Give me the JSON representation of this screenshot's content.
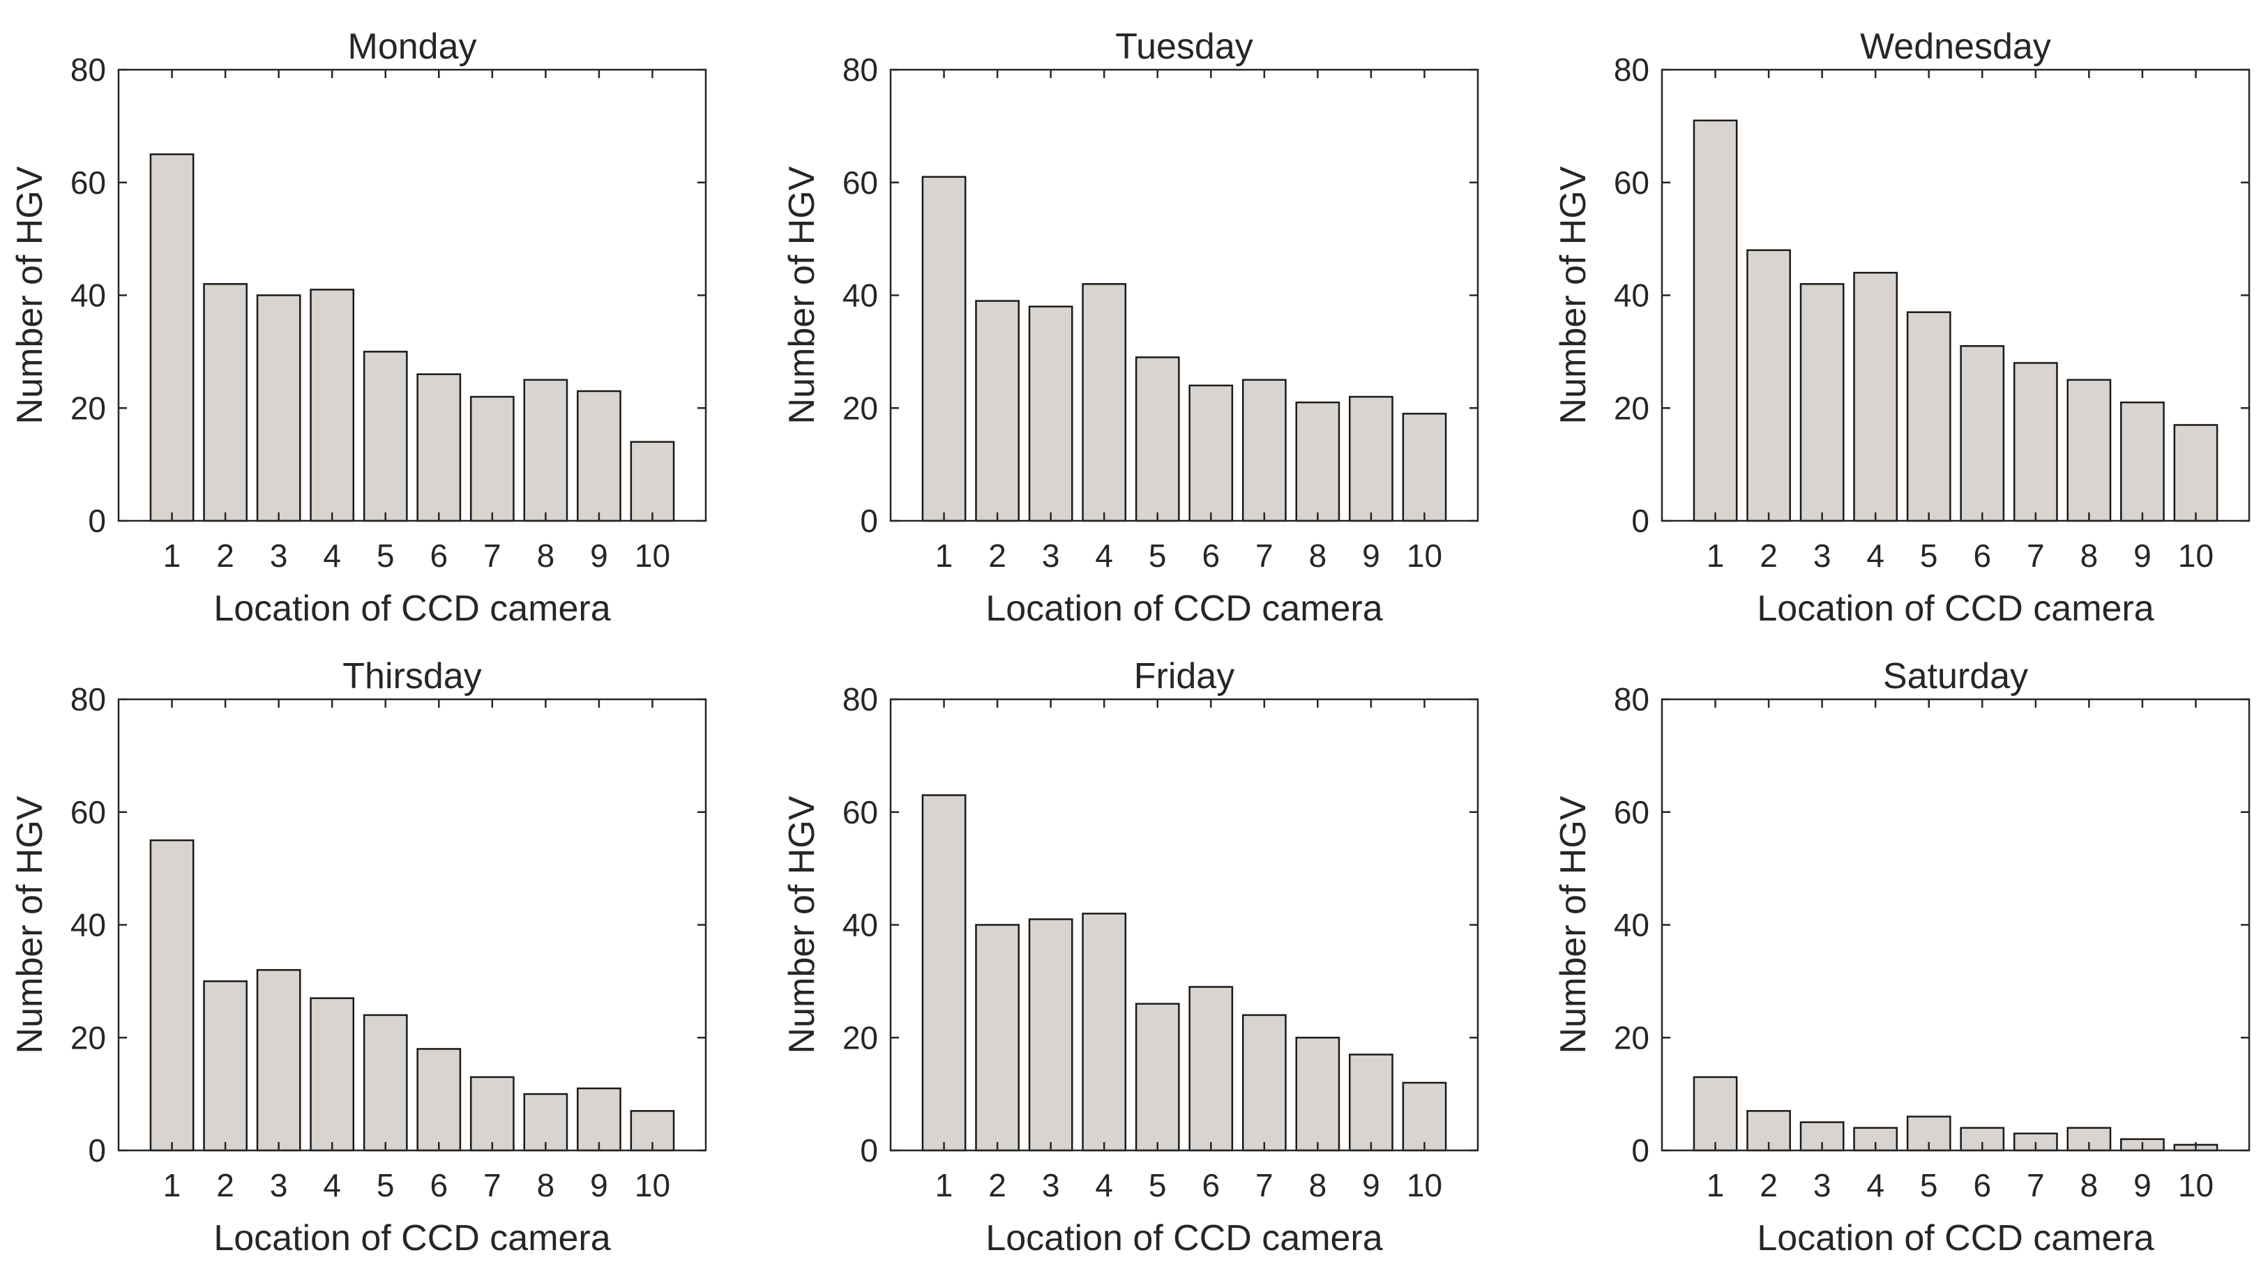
{
  "chart_data": [
    {
      "type": "bar",
      "title": "Monday",
      "xlabel": "Location of CCD camera",
      "ylabel": "Number of HGV",
      "categories": [
        "1",
        "2",
        "3",
        "4",
        "5",
        "6",
        "7",
        "8",
        "9",
        "10"
      ],
      "values": [
        65,
        42,
        40,
        41,
        30,
        26,
        22,
        25,
        23,
        14
      ],
      "ylim": [
        0,
        80
      ],
      "yticks": [
        "0",
        "20",
        "40",
        "60",
        "80"
      ],
      "grid": false
    },
    {
      "type": "bar",
      "title": "Tuesday",
      "xlabel": "Location of CCD camera",
      "ylabel": "Number of HGV",
      "categories": [
        "1",
        "2",
        "3",
        "4",
        "5",
        "6",
        "7",
        "8",
        "9",
        "10"
      ],
      "values": [
        61,
        39,
        38,
        42,
        29,
        24,
        25,
        21,
        22,
        19
      ],
      "ylim": [
        0,
        80
      ],
      "yticks": [
        "0",
        "20",
        "40",
        "60",
        "80"
      ],
      "grid": false
    },
    {
      "type": "bar",
      "title": "Wednesday",
      "xlabel": "Location of CCD camera",
      "ylabel": "Number of HGV",
      "categories": [
        "1",
        "2",
        "3",
        "4",
        "5",
        "6",
        "7",
        "8",
        "9",
        "10"
      ],
      "values": [
        71,
        48,
        42,
        44,
        37,
        31,
        28,
        25,
        21,
        17
      ],
      "ylim": [
        0,
        80
      ],
      "yticks": [
        "0",
        "20",
        "40",
        "60",
        "80"
      ],
      "grid": false
    },
    {
      "type": "bar",
      "title": "Thirsday",
      "xlabel": "Location of CCD camera",
      "ylabel": "Number of HGV",
      "categories": [
        "1",
        "2",
        "3",
        "4",
        "5",
        "6",
        "7",
        "8",
        "9",
        "10"
      ],
      "values": [
        55,
        30,
        32,
        27,
        24,
        18,
        13,
        10,
        11,
        7
      ],
      "ylim": [
        0,
        80
      ],
      "yticks": [
        "0",
        "20",
        "40",
        "60",
        "80"
      ],
      "grid": false
    },
    {
      "type": "bar",
      "title": "Friday",
      "xlabel": "Location of CCD camera",
      "ylabel": "Number of HGV",
      "categories": [
        "1",
        "2",
        "3",
        "4",
        "5",
        "6",
        "7",
        "8",
        "9",
        "10"
      ],
      "values": [
        63,
        40,
        41,
        42,
        26,
        29,
        24,
        20,
        17,
        12
      ],
      "ylim": [
        0,
        80
      ],
      "yticks": [
        "0",
        "20",
        "40",
        "60",
        "80"
      ],
      "grid": false
    },
    {
      "type": "bar",
      "title": "Saturday",
      "xlabel": "Location of CCD camera",
      "ylabel": "Number of HGV",
      "categories": [
        "1",
        "2",
        "3",
        "4",
        "5",
        "6",
        "7",
        "8",
        "9",
        "10"
      ],
      "values": [
        13,
        7,
        5,
        4,
        6,
        4,
        3,
        4,
        2,
        1
      ],
      "ylim": [
        0,
        80
      ],
      "yticks": [
        "0",
        "20",
        "40",
        "60",
        "80"
      ],
      "grid": false
    }
  ],
  "colors": {
    "bar_fill": "#d9d4cf",
    "bar_stroke": "#1a1a1a",
    "axis": "#262626",
    "text": "#262626"
  }
}
